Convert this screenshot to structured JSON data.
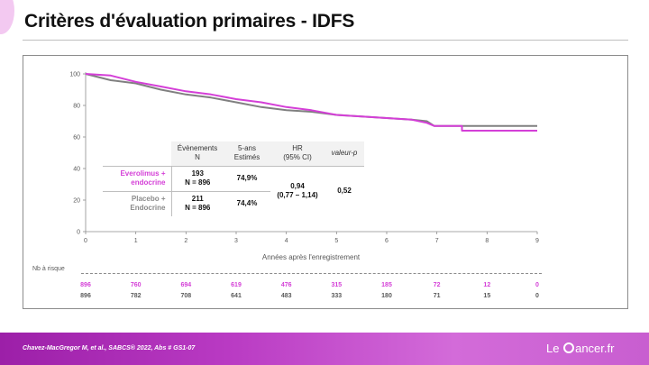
{
  "slide": {
    "title": "Critères d'évaluation primaires - IDFS"
  },
  "colors": {
    "everolimus": "#d43fd7",
    "placebo": "#808080"
  },
  "chart_data": {
    "type": "line",
    "xlabel": "Années après l'enregistrement",
    "ylabel": "",
    "xlim": [
      0,
      9
    ],
    "ylim": [
      0,
      100
    ],
    "x_ticks": [
      "0",
      "1",
      "2",
      "3",
      "4",
      "5",
      "6",
      "7",
      "8",
      "9"
    ],
    "y_ticks": [
      "0",
      "20",
      "40",
      "60",
      "80",
      "100"
    ],
    "series": [
      {
        "name": "Everolimus + endocrine",
        "color": "#d43fd7",
        "x": [
          0,
          0.5,
          1,
          1.5,
          2,
          2.5,
          3,
          3.5,
          4,
          4.5,
          5,
          5.5,
          6,
          6.5,
          6.8,
          6.95,
          7.5,
          7.5,
          9
        ],
        "y": [
          100,
          99,
          95,
          92,
          89,
          87,
          84,
          82,
          79,
          77,
          74,
          73,
          72,
          71,
          69,
          67,
          67,
          64,
          64
        ]
      },
      {
        "name": "Placebo + Endocrine",
        "color": "#808080",
        "x": [
          0,
          0.5,
          1,
          1.5,
          2,
          2.5,
          3,
          3.5,
          4,
          4.5,
          5,
          5.5,
          6,
          6.5,
          6.8,
          6.95,
          9
        ],
        "y": [
          100,
          96,
          94,
          90,
          87,
          85,
          82,
          79,
          77,
          76,
          74,
          73,
          72,
          71,
          70,
          67,
          67
        ]
      }
    ]
  },
  "table": {
    "headers": [
      "Évènements\nN",
      "5-ans\nEstimés",
      "HR\n(95% CI)",
      "valeur-p"
    ],
    "rows": [
      {
        "label": "Everolimus +\nendocrine",
        "events": "193\nN = 896",
        "estimate": "74,9%"
      },
      {
        "label": "Placebo +\nEndocrine",
        "events": "211\nN = 896",
        "estimate": "74,4%"
      }
    ],
    "hr": "0,94\n(0,77 – 1,14)",
    "p_value": "0,52"
  },
  "risk_table": {
    "title": "Nb à risque",
    "everolimus": [
      "896",
      "760",
      "694",
      "619",
      "476",
      "315",
      "185",
      "72",
      "12",
      "0"
    ],
    "placebo": [
      "896",
      "782",
      "708",
      "641",
      "483",
      "333",
      "180",
      "71",
      "15",
      "0"
    ]
  },
  "footer": {
    "reference": "Chavez-MacGregor M, et al., SABCS® 2022, Abs # GS1-07",
    "logo_left": "Le",
    "logo_right": "ancer.fr"
  }
}
